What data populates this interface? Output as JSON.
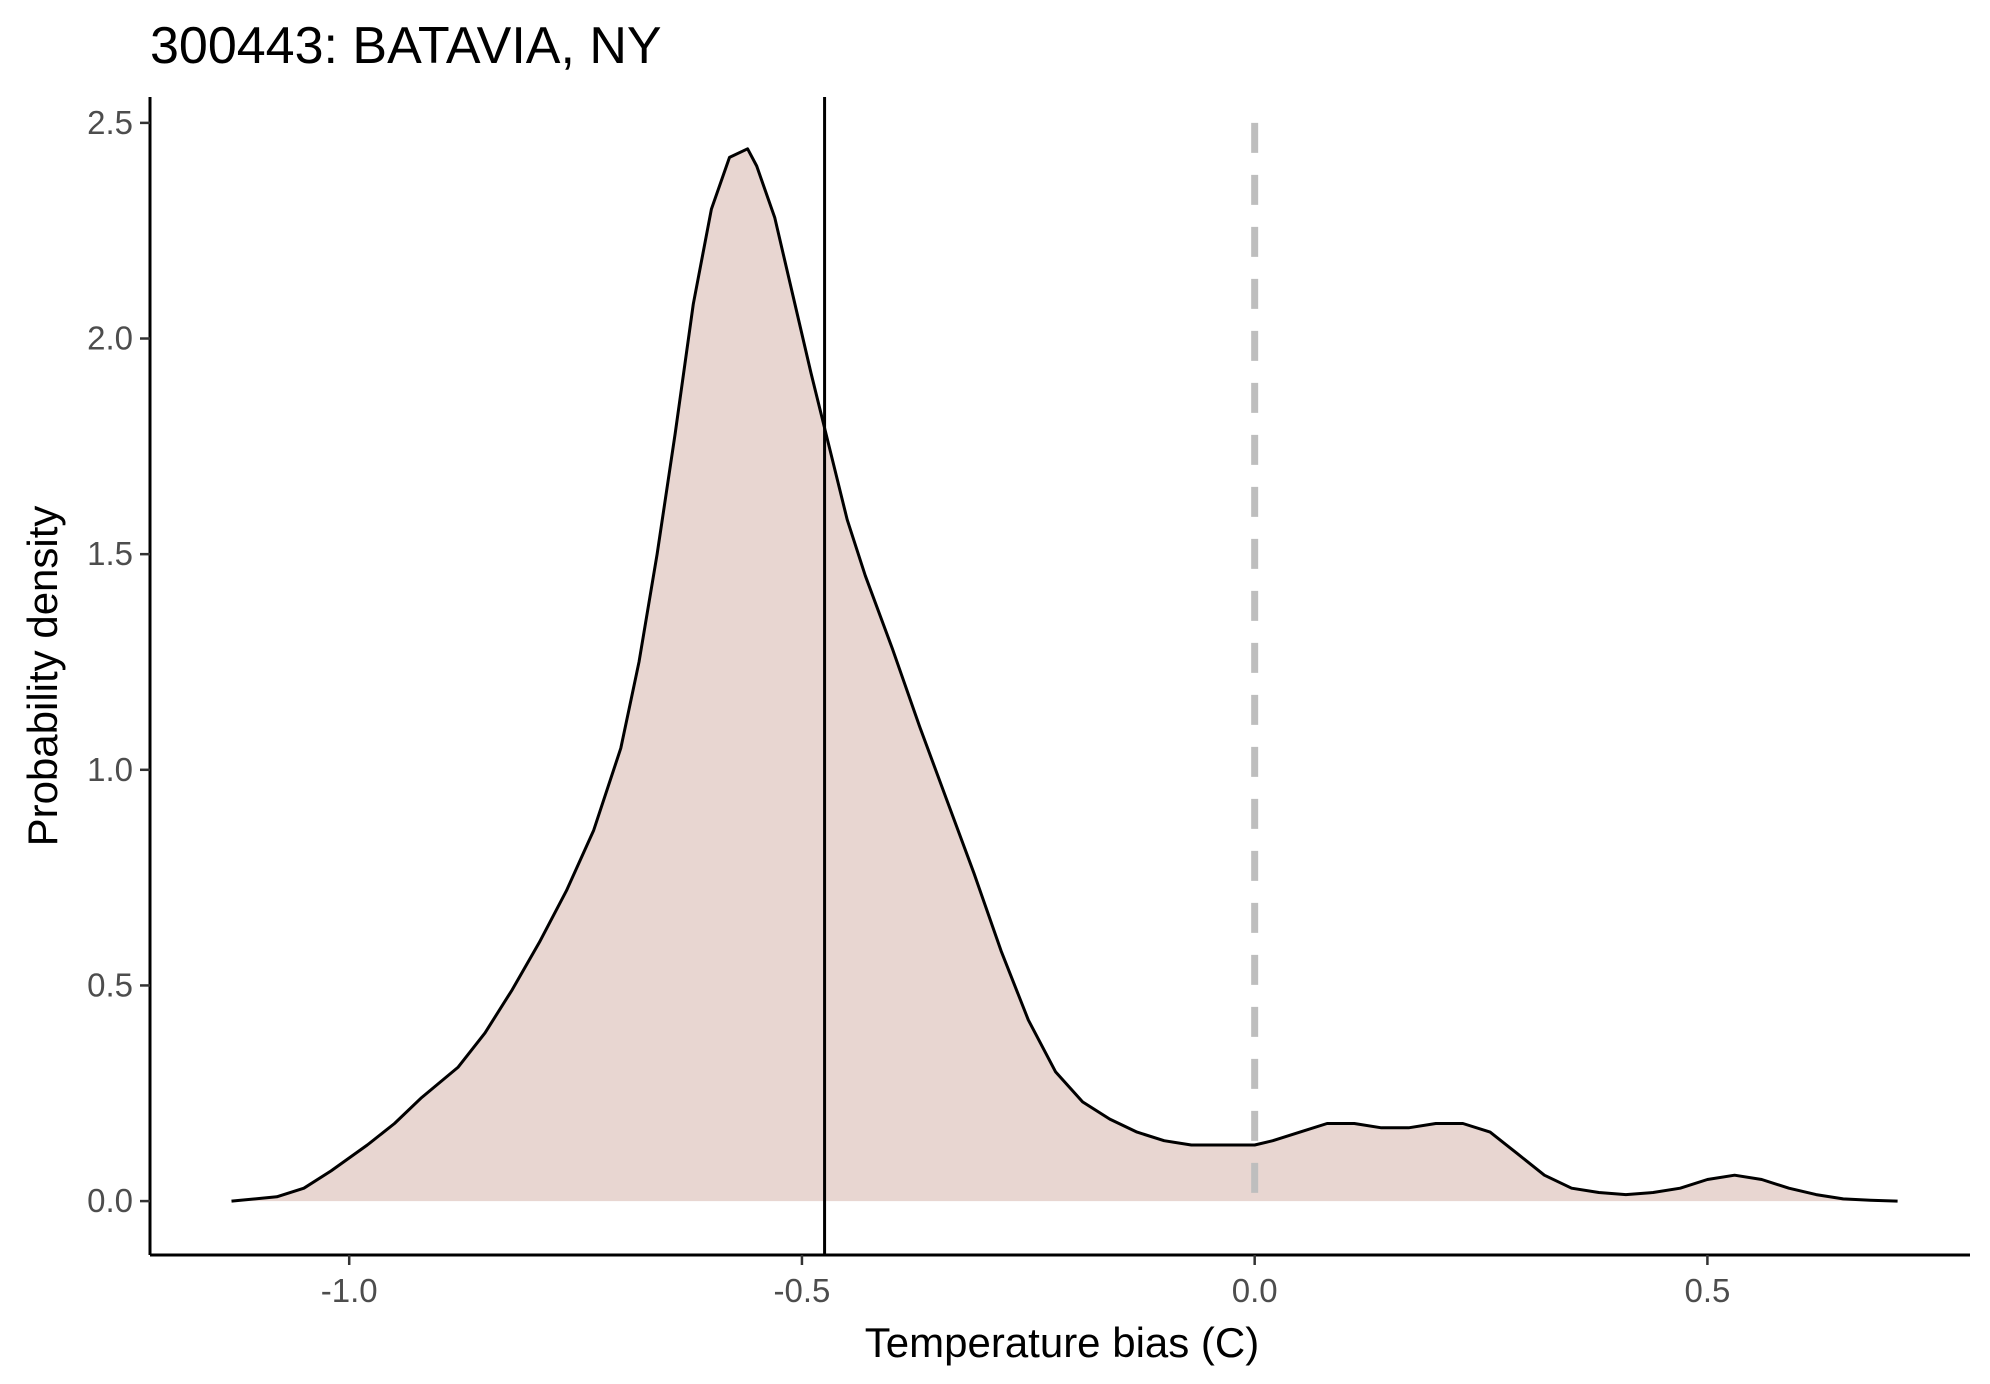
{
  "chart_data": {
    "type": "area",
    "title": "300443: BATAVIA, NY",
    "xlabel": "Temperature bias (C)",
    "ylabel": "Probability density",
    "xlim": [
      -1.22,
      0.79
    ],
    "ylim": [
      -0.125,
      2.56
    ],
    "x_ticks": [
      -1.0,
      -0.5,
      0.0,
      0.5
    ],
    "x_tick_labels": [
      "-1.0",
      "-0.5",
      "0.0",
      "0.5"
    ],
    "y_ticks": [
      0.0,
      0.5,
      1.0,
      1.5,
      2.0,
      2.5
    ],
    "y_tick_labels": [
      "0.0",
      "0.5",
      "1.0",
      "1.5",
      "2.0",
      "2.5"
    ],
    "grid": false,
    "legend": "none",
    "fill_color": "#e8d6d1",
    "line_color": "#000000",
    "density": {
      "x": [
        -1.13,
        -1.08,
        -1.05,
        -1.02,
        -0.98,
        -0.95,
        -0.92,
        -0.88,
        -0.85,
        -0.82,
        -0.79,
        -0.76,
        -0.73,
        -0.7,
        -0.68,
        -0.66,
        -0.64,
        -0.62,
        -0.6,
        -0.58,
        -0.56,
        -0.55,
        -0.53,
        -0.51,
        -0.49,
        -0.47,
        -0.45,
        -0.43,
        -0.4,
        -0.37,
        -0.34,
        -0.31,
        -0.28,
        -0.25,
        -0.22,
        -0.19,
        -0.16,
        -0.13,
        -0.1,
        -0.07,
        -0.04,
        -0.02,
        0.0,
        0.02,
        0.05,
        0.08,
        0.11,
        0.14,
        0.17,
        0.2,
        0.23,
        0.26,
        0.29,
        0.32,
        0.35,
        0.38,
        0.41,
        0.44,
        0.47,
        0.5,
        0.53,
        0.56,
        0.59,
        0.62,
        0.65,
        0.68,
        0.71
      ],
      "y": [
        0.0,
        0.01,
        0.03,
        0.07,
        0.13,
        0.18,
        0.24,
        0.31,
        0.39,
        0.49,
        0.6,
        0.72,
        0.86,
        1.05,
        1.25,
        1.5,
        1.78,
        2.08,
        2.3,
        2.42,
        2.44,
        2.4,
        2.28,
        2.1,
        1.92,
        1.75,
        1.58,
        1.45,
        1.28,
        1.1,
        0.93,
        0.76,
        0.58,
        0.42,
        0.3,
        0.23,
        0.19,
        0.16,
        0.14,
        0.13,
        0.13,
        0.13,
        0.13,
        0.14,
        0.16,
        0.18,
        0.18,
        0.17,
        0.17,
        0.18,
        0.18,
        0.16,
        0.11,
        0.06,
        0.03,
        0.02,
        0.015,
        0.02,
        0.03,
        0.05,
        0.06,
        0.05,
        0.03,
        0.015,
        0.005,
        0.002,
        0.0
      ]
    },
    "vlines": [
      {
        "x": -0.475,
        "style": "solid",
        "color": "#000000"
      },
      {
        "x": 0.0,
        "style": "dashed",
        "color": "#bebebe"
      }
    ]
  }
}
